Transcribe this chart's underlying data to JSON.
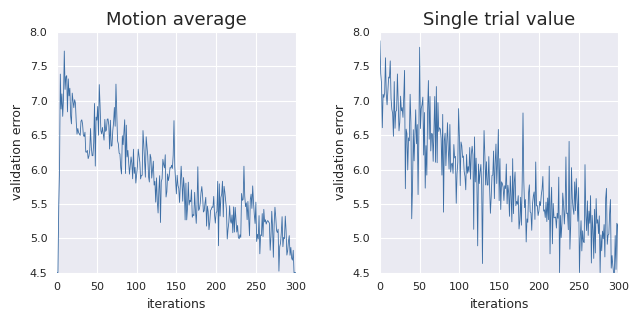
{
  "title1": "Motion average",
  "title2": "Single trial value",
  "xlabel": "iterations",
  "ylabel": "validation error",
  "ylim": [
    4.5,
    8.0
  ],
  "xlim": [
    0,
    300
  ],
  "yticks": [
    4.5,
    5.0,
    5.5,
    6.0,
    6.5,
    7.0,
    7.5,
    8.0
  ],
  "xticks": [
    0,
    50,
    100,
    150,
    200,
    250,
    300
  ],
  "line_color": "#3c6ea5",
  "bg_color": "#eaeaf2",
  "grid_color": "#ffffff",
  "n_points": 301,
  "title_fontsize": 13,
  "label_fontsize": 9,
  "tick_fontsize": 8,
  "figsize": [
    6.4,
    3.22
  ],
  "dpi": 100
}
